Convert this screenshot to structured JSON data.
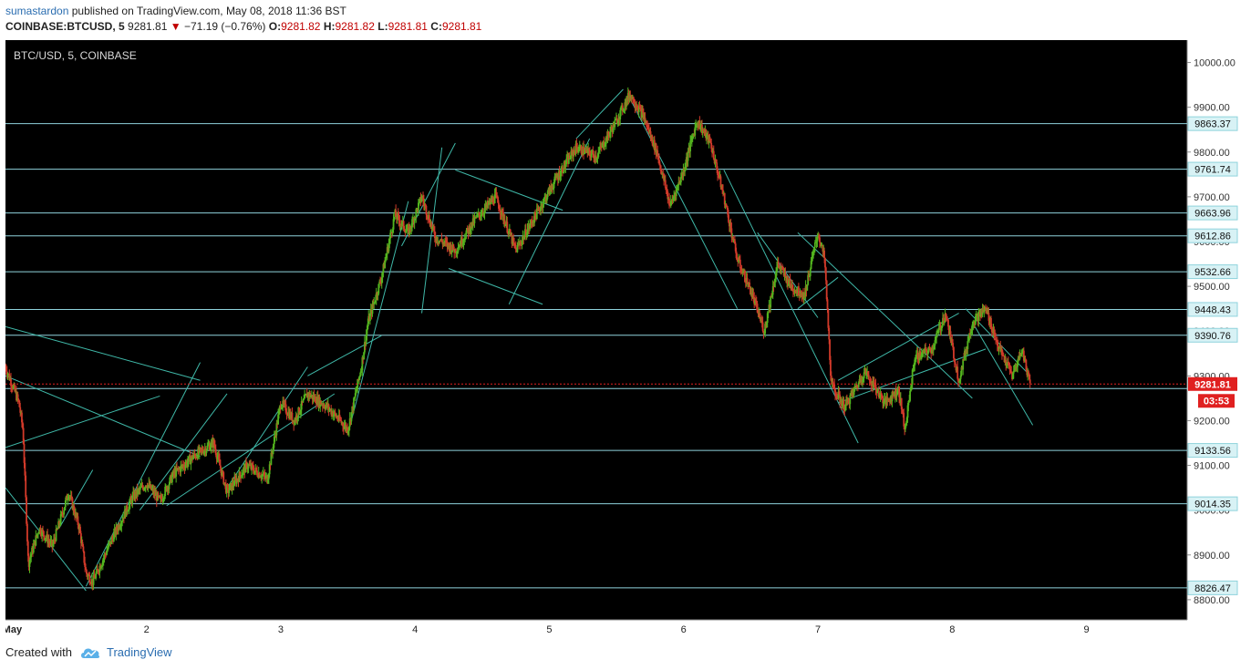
{
  "header": {
    "author": "sumastardon",
    "published_text": "published on TradingView.com, May 08, 2018 11:36 BST"
  },
  "quote": {
    "symbol": "COINBASE:BTCUSD, 5",
    "last": "9281.81",
    "change": "−71.19 (−0.76%)",
    "o_label": "O:",
    "o": "9281.82",
    "h_label": "H:",
    "h": "9281.82",
    "l_label": "L:",
    "l": "9281.81",
    "c_label": "C:",
    "c": "9281.81"
  },
  "footer": {
    "created_with": "Created with",
    "brand": "TradingView"
  },
  "colors": {
    "background": "#000000",
    "level_line": "#8fd3dc",
    "trend_line": "#3fb8a8",
    "up_candle": "#53b41e",
    "down_candle": "#d23a2a",
    "price_line": "#e02020"
  },
  "chart_data": {
    "type": "candlestick",
    "title": "BTC/USD, 5, COINBASE",
    "ylim": [
      8755,
      10050
    ],
    "xlim": [
      0.95,
      9.75
    ],
    "x_ticks": [
      {
        "x": 1,
        "label": "May"
      },
      {
        "x": 2,
        "label": "2"
      },
      {
        "x": 3,
        "label": "3"
      },
      {
        "x": 4,
        "label": "4"
      },
      {
        "x": 5,
        "label": "5"
      },
      {
        "x": 6,
        "label": "6"
      },
      {
        "x": 7,
        "label": "7"
      },
      {
        "x": 8,
        "label": "8"
      },
      {
        "x": 9,
        "label": "9"
      }
    ],
    "y_ticks": [
      10000,
      9900,
      9800,
      9700,
      9600,
      9500,
      9400,
      9300,
      9200,
      9100,
      9000,
      8900,
      8800
    ],
    "horizontal_levels": [
      9863.37,
      9761.74,
      9663.96,
      9612.86,
      9532.66,
      9448.43,
      9390.76,
      9271.8,
      9133.56,
      9014.35,
      8826.47
    ],
    "level_labels": [
      "9863.37",
      "9761.74",
      "9663.96",
      "9612.86",
      "9532.66",
      "9448.43",
      "9390.76",
      "9133.56",
      "9014.35",
      "8826.47"
    ],
    "current_price": 9281.81,
    "current_price_label": "9281.81",
    "countdown": "03:53",
    "price_path": [
      [
        0.95,
        9320
      ],
      [
        1.05,
        9240
      ],
      [
        1.08,
        9180
      ],
      [
        1.12,
        8880
      ],
      [
        1.2,
        8960
      ],
      [
        1.3,
        8920
      ],
      [
        1.42,
        9040
      ],
      [
        1.5,
        8960
      ],
      [
        1.55,
        8860
      ],
      [
        1.6,
        8840
      ],
      [
        1.75,
        8940
      ],
      [
        1.9,
        9030
      ],
      [
        2.0,
        9060
      ],
      [
        2.1,
        9020
      ],
      [
        2.2,
        9080
      ],
      [
        2.35,
        9120
      ],
      [
        2.5,
        9150
      ],
      [
        2.6,
        9040
      ],
      [
        2.75,
        9100
      ],
      [
        2.9,
        9070
      ],
      [
        3.0,
        9240
      ],
      [
        3.1,
        9200
      ],
      [
        3.2,
        9260
      ],
      [
        3.35,
        9230
      ],
      [
        3.5,
        9180
      ],
      [
        3.6,
        9320
      ],
      [
        3.65,
        9420
      ],
      [
        3.75,
        9520
      ],
      [
        3.85,
        9660
      ],
      [
        3.95,
        9620
      ],
      [
        4.05,
        9700
      ],
      [
        4.15,
        9610
      ],
      [
        4.3,
        9580
      ],
      [
        4.45,
        9650
      ],
      [
        4.6,
        9700
      ],
      [
        4.75,
        9580
      ],
      [
        4.9,
        9660
      ],
      [
        5.05,
        9740
      ],
      [
        5.2,
        9810
      ],
      [
        5.35,
        9790
      ],
      [
        5.5,
        9870
      ],
      [
        5.6,
        9930
      ],
      [
        5.7,
        9880
      ],
      [
        5.8,
        9800
      ],
      [
        5.9,
        9680
      ],
      [
        6.0,
        9760
      ],
      [
        6.1,
        9870
      ],
      [
        6.2,
        9820
      ],
      [
        6.3,
        9700
      ],
      [
        6.4,
        9560
      ],
      [
        6.5,
        9490
      ],
      [
        6.6,
        9400
      ],
      [
        6.7,
        9550
      ],
      [
        6.8,
        9500
      ],
      [
        6.9,
        9480
      ],
      [
        7.0,
        9620
      ],
      [
        7.05,
        9560
      ],
      [
        7.1,
        9280
      ],
      [
        7.2,
        9230
      ],
      [
        7.35,
        9310
      ],
      [
        7.5,
        9240
      ],
      [
        7.6,
        9270
      ],
      [
        7.65,
        9180
      ],
      [
        7.72,
        9340
      ],
      [
        7.85,
        9360
      ],
      [
        7.95,
        9440
      ],
      [
        8.05,
        9290
      ],
      [
        8.15,
        9420
      ],
      [
        8.25,
        9450
      ],
      [
        8.35,
        9360
      ],
      [
        8.45,
        9300
      ],
      [
        8.52,
        9360
      ],
      [
        8.58,
        9283
      ]
    ],
    "trend_lines": [
      [
        [
          0.95,
          9410
        ],
        [
          2.4,
          9290
        ]
      ],
      [
        [
          0.95,
          9300
        ],
        [
          2.4,
          9120
        ]
      ],
      [
        [
          0.95,
          9050
        ],
        [
          1.55,
          8820
        ]
      ],
      [
        [
          0.95,
          9140
        ],
        [
          2.1,
          9255
        ]
      ],
      [
        [
          1.35,
          8960
        ],
        [
          1.6,
          9090
        ]
      ],
      [
        [
          1.55,
          8830
        ],
        [
          2.4,
          9330
        ]
      ],
      [
        [
          1.95,
          9000
        ],
        [
          2.6,
          9260
        ]
      ],
      [
        [
          2.15,
          9010
        ],
        [
          3.4,
          9260
        ]
      ],
      [
        [
          2.6,
          9050
        ],
        [
          3.2,
          9320
        ]
      ],
      [
        [
          3.2,
          9300
        ],
        [
          3.75,
          9390
        ]
      ],
      [
        [
          3.5,
          9170
        ],
        [
          3.95,
          9690
        ]
      ],
      [
        [
          4.05,
          9440
        ],
        [
          4.2,
          9810
        ]
      ],
      [
        [
          3.9,
          9590
        ],
        [
          4.3,
          9820
        ]
      ],
      [
        [
          4.3,
          9760
        ],
        [
          5.1,
          9670
        ]
      ],
      [
        [
          4.25,
          9540
        ],
        [
          4.95,
          9460
        ]
      ],
      [
        [
          4.7,
          9460
        ],
        [
          5.3,
          9830
        ]
      ],
      [
        [
          5.2,
          9830
        ],
        [
          5.55,
          9940
        ]
      ],
      [
        [
          5.6,
          9920
        ],
        [
          6.4,
          9450
        ]
      ],
      [
        [
          6.3,
          9760
        ],
        [
          7.3,
          9150
        ]
      ],
      [
        [
          6.55,
          9620
        ],
        [
          7.0,
          9430
        ]
      ],
      [
        [
          6.85,
          9450
        ],
        [
          7.15,
          9520
        ]
      ],
      [
        [
          6.85,
          9620
        ],
        [
          8.15,
          9250
        ]
      ],
      [
        [
          7.15,
          9290
        ],
        [
          8.05,
          9440
        ]
      ],
      [
        [
          7.15,
          9240
        ],
        [
          8.25,
          9360
        ]
      ],
      [
        [
          8.1,
          9450
        ],
        [
          8.55,
          9310
        ]
      ],
      [
        [
          8.15,
          9420
        ],
        [
          8.6,
          9190
        ]
      ]
    ]
  }
}
